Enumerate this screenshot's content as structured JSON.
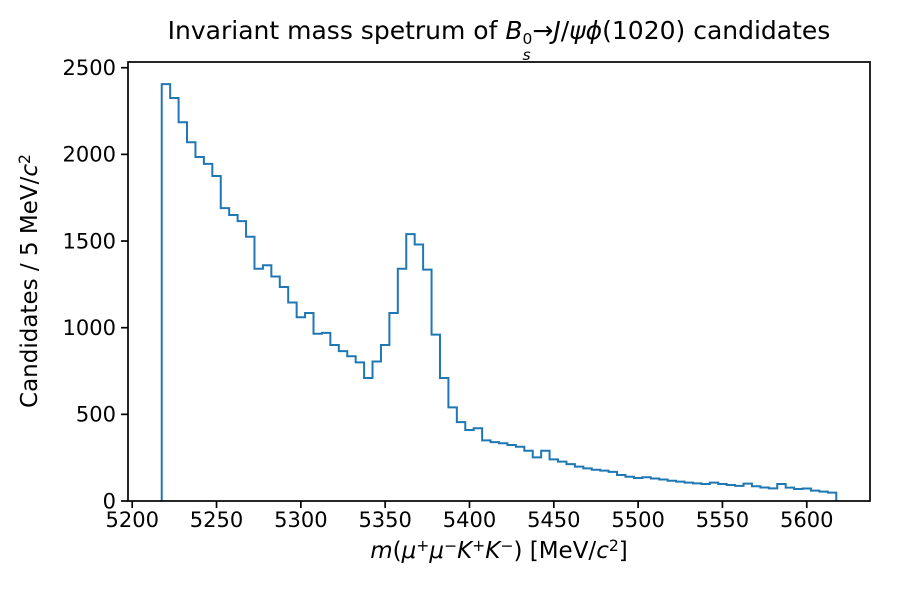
{
  "figure": {
    "title_plain": "Invariant mass spetrum of B0s→J/ψϕ(1020) candidates",
    "xlabel_plain": "m(μ+μ−K+K−) [MeV/c2]",
    "ylabel_plain": "Candidates / 5 MeV/c2"
  },
  "chart_data": {
    "type": "histogram-step",
    "title": "Invariant mass spetrum of B0s→J/ψϕ(1020) candidates",
    "title_rich": [
      {
        "t": "Invariant mass spetrum of "
      },
      {
        "t": "B",
        "style": "i"
      },
      {
        "stack": {
          "sup": "0",
          "sub": "s"
        }
      },
      {
        "t": "→"
      },
      {
        "t": "J",
        "style": "i"
      },
      {
        "t": "/"
      },
      {
        "t": "ψϕ",
        "style": "i"
      },
      {
        "t": "(1020) candidates"
      }
    ],
    "xlabel_rich": [
      {
        "t": "m",
        "style": "i"
      },
      {
        "t": "("
      },
      {
        "t": "μ",
        "style": "i"
      },
      {
        "t": "+",
        "style": "sup"
      },
      {
        "t": "μ",
        "style": "i"
      },
      {
        "t": "−",
        "style": "sup"
      },
      {
        "t": "K",
        "style": "i"
      },
      {
        "t": "+",
        "style": "sup"
      },
      {
        "t": "K",
        "style": "i"
      },
      {
        "t": "−",
        "style": "sup"
      },
      {
        "t": ") [MeV/"
      },
      {
        "t": "c",
        "style": "i"
      },
      {
        "t": "2",
        "style": "sup"
      },
      {
        "t": "]"
      }
    ],
    "ylabel_rich": [
      {
        "t": "Candidates / 5 MeV/"
      },
      {
        "t": "c",
        "style": "i"
      },
      {
        "t": "2",
        "style": "sup"
      }
    ],
    "bin_start": 5217.5,
    "bin_width": 5,
    "counts": [
      2405,
      2325,
      2185,
      2070,
      1985,
      1945,
      1875,
      1690,
      1650,
      1615,
      1525,
      1340,
      1360,
      1295,
      1235,
      1145,
      1060,
      1085,
      965,
      970,
      900,
      865,
      835,
      800,
      710,
      805,
      900,
      1085,
      1340,
      1540,
      1480,
      1335,
      960,
      710,
      540,
      455,
      410,
      420,
      350,
      340,
      333,
      323,
      313,
      290,
      252,
      290,
      240,
      227,
      213,
      198,
      188,
      180,
      175,
      168,
      150,
      140,
      133,
      137,
      130,
      124,
      117,
      112,
      106,
      102,
      98,
      106,
      98,
      92,
      87,
      100,
      85,
      78,
      73,
      98,
      77,
      69,
      72,
      60,
      54,
      48
    ],
    "xlim": [
      5197.5,
      5637.5
    ],
    "ylim": [
      0,
      2533
    ],
    "xticks": [
      5200,
      5250,
      5300,
      5350,
      5400,
      5450,
      5500,
      5550,
      5600
    ],
    "yticks": [
      0,
      500,
      1000,
      1500,
      2000,
      2500
    ],
    "grid": false,
    "legend": null,
    "line_color": "#1f77b4",
    "axis_color": "#000000",
    "background_color": "#ffffff"
  }
}
